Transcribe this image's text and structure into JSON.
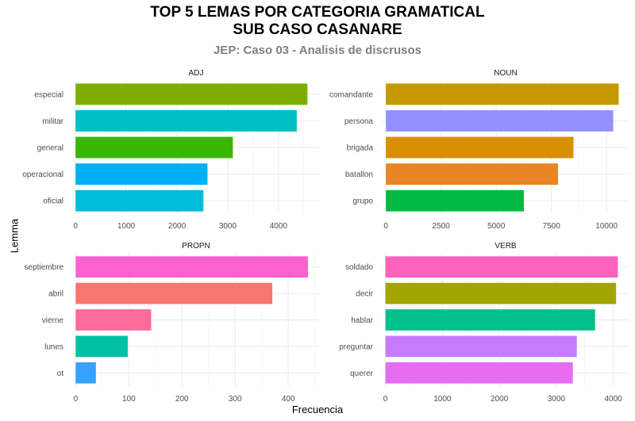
{
  "title": "TOP 5 LEMAS POR CATEGORIA GRAMATICAL",
  "title_line2": "SUB CASO CASANARE",
  "subtitle": "JEP: Caso 03 - Analisis de discrusos",
  "xlabel": "Frecuencia",
  "ylabel": "Lemma",
  "chart_data": [
    {
      "type": "bar",
      "orientation": "horizontal",
      "facet": "ADJ",
      "categories": [
        "especial",
        "militar",
        "general",
        "operacional",
        "oficial"
      ],
      "values": [
        4570,
        4360,
        3100,
        2600,
        2520
      ],
      "colors": [
        "#7cae00",
        "#00bfc4",
        "#39b600",
        "#00b0f6",
        "#00bcd8"
      ],
      "xticks": [
        0,
        1000,
        2000,
        3000,
        4000
      ],
      "xlim": [
        -50,
        4800
      ]
    },
    {
      "type": "bar",
      "orientation": "horizontal",
      "facet": "NOUN",
      "categories": [
        "comandante",
        "persona",
        "brigada",
        "batallon",
        "grupo"
      ],
      "values": [
        10550,
        10300,
        8500,
        7800,
        6250
      ],
      "colors": [
        "#c49a00",
        "#9590ff",
        "#d89000",
        "#e88526",
        "#00ba42"
      ],
      "xticks": [
        0,
        2500,
        5000,
        7500,
        10000
      ],
      "xlim": [
        -150,
        11000
      ]
    },
    {
      "type": "bar",
      "orientation": "horizontal",
      "facet": "PROPN",
      "categories": [
        "septiembre",
        "abril",
        "vierne",
        "lunes",
        "ot"
      ],
      "values": [
        437,
        370,
        142,
        98,
        38
      ],
      "colors": [
        "#fd61d1",
        "#f8766d",
        "#ff6a98",
        "#00c1a3",
        "#35a2ff"
      ],
      "xticks": [
        0,
        100,
        200,
        300,
        400
      ],
      "xlim": [
        -5,
        458
      ]
    },
    {
      "type": "bar",
      "orientation": "horizontal",
      "facet": "VERB",
      "categories": [
        "soldado",
        "decir",
        "hablar",
        "preguntar",
        "querer"
      ],
      "values": [
        4080,
        4050,
        3680,
        3360,
        3290
      ],
      "colors": [
        "#ff62bc",
        "#a3a500",
        "#00c08b",
        "#c77cff",
        "#e76bf3"
      ],
      "xticks": [
        0,
        1000,
        2000,
        3000,
        4000
      ],
      "xlim": [
        -50,
        4270
      ]
    }
  ]
}
